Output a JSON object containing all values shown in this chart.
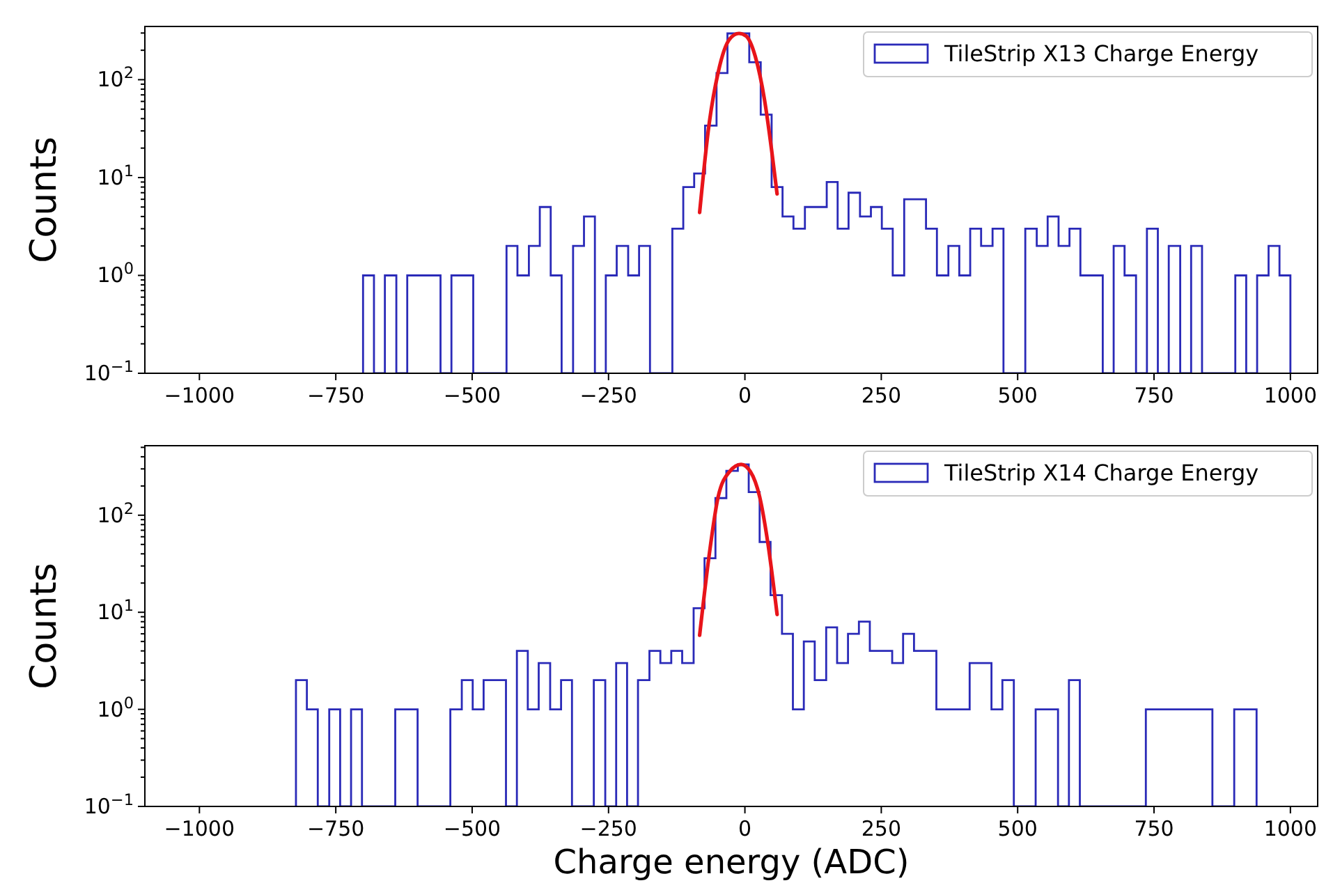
{
  "chart_data": [
    {
      "type": "histogram",
      "ylabel": "Counts",
      "log": true,
      "legend": "top right",
      "xlim": [
        -1100,
        1050
      ],
      "ylim": [
        0.1,
        350
      ],
      "xticks": [
        {
          "value": -1000,
          "label": "−1000"
        },
        {
          "value": -750,
          "label": "−750"
        },
        {
          "value": -500,
          "label": "−500"
        },
        {
          "value": -250,
          "label": "−250"
        },
        0,
        250,
        500,
        750,
        1000
      ],
      "yticks": [
        {
          "value": 0.1,
          "label": "10$^{−1}$"
        },
        {
          "value": 0.2,
          "label": null
        },
        {
          "value": 0.3,
          "label": null
        },
        {
          "value": 0.4,
          "label": null
        },
        {
          "value": 0.5,
          "label": null
        },
        {
          "value": 0.6,
          "label": null
        },
        {
          "value": 0.7,
          "label": null
        },
        {
          "value": 0.8,
          "label": null
        },
        {
          "value": 0.9,
          "label": null
        },
        {
          "value": 1,
          "label": "10$^{0}$"
        },
        {
          "value": 2,
          "label": null
        },
        {
          "value": 3,
          "label": null
        },
        {
          "value": 4,
          "label": null
        },
        {
          "value": 5,
          "label": null
        },
        {
          "value": 6,
          "label": null
        },
        {
          "value": 7,
          "label": null
        },
        {
          "value": 8,
          "label": null
        },
        {
          "value": 9,
          "label": null
        },
        {
          "value": 10,
          "label": "10$^{1}$"
        },
        {
          "value": 20,
          "label": null
        },
        {
          "value": 30,
          "label": null
        },
        {
          "value": 40,
          "label": null
        },
        {
          "value": 50,
          "label": null
        },
        {
          "value": 60,
          "label": null
        },
        {
          "value": 70,
          "label": null
        },
        {
          "value": 80,
          "label": null
        },
        {
          "value": 90,
          "label": null
        },
        {
          "value": 100,
          "label": "10$^{2}$"
        },
        {
          "value": 200,
          "label": null
        },
        {
          "value": 300,
          "label": null
        }
      ],
      "bins": [
        -700,
        -680,
        -660,
        -639,
        -619,
        -599,
        -579,
        -558,
        -538,
        -518,
        -498,
        -477,
        -457,
        -437,
        -417,
        -396,
        -376,
        -356,
        -336,
        -315,
        -295,
        -275,
        -255,
        -235,
        -214,
        -194,
        -174,
        -154,
        -133,
        -113,
        -93,
        -73,
        -52,
        -32,
        -12,
        8,
        29,
        49,
        69,
        89,
        110,
        130,
        150,
        170,
        190,
        211,
        231,
        251,
        271,
        292,
        312,
        332,
        352,
        373,
        393,
        413,
        433,
        454,
        474,
        494,
        514,
        535,
        555,
        575,
        595,
        615,
        636,
        656,
        676,
        696,
        717,
        737,
        757,
        777,
        798,
        818,
        838,
        858,
        879,
        899,
        919,
        939,
        960,
        980,
        1000
      ],
      "series": [
        {
          "name": "TileStrip X13 Charge Energy",
          "color": "#2a2ab8",
          "values": [
            1,
            null,
            1,
            null,
            1,
            1,
            1,
            null,
            1,
            1,
            null,
            null,
            null,
            2,
            1,
            2,
            5,
            1,
            null,
            2,
            4,
            null,
            1,
            2,
            1,
            2,
            null,
            null,
            3,
            8,
            11,
            34,
            117,
            297,
            297,
            151,
            44,
            8,
            4,
            3,
            5,
            5,
            9,
            3,
            7,
            4,
            5,
            3,
            1,
            6,
            6,
            3,
            1,
            2,
            1,
            3,
            2,
            3,
            null,
            null,
            3,
            2,
            4,
            2,
            3,
            1,
            1,
            null,
            2,
            1,
            null,
            3,
            null,
            2,
            null,
            2,
            null,
            null,
            null,
            1,
            null,
            1,
            2,
            1
          ]
        },
        {
          "type": "line",
          "color": "#e8141a",
          "x": [
            -83,
            -66,
            -49,
            -28,
            -11,
            2,
            19,
            36,
            49,
            59
          ],
          "values": [
            4.4,
            34,
            119,
            260,
            297,
            280,
            173,
            62,
            19,
            6.8
          ]
        }
      ]
    },
    {
      "type": "histogram",
      "ylabel": "Counts",
      "xlabel": "Charge energy (ADC)",
      "log": true,
      "legend": "top right",
      "xlim": [
        -1100,
        1050
      ],
      "ylim": [
        0.1,
        520
      ],
      "xticks": [
        {
          "value": -1000,
          "label": "−1000"
        },
        {
          "value": -750,
          "label": "−750"
        },
        {
          "value": -500,
          "label": "−500"
        },
        {
          "value": -250,
          "label": "−250"
        },
        0,
        250,
        500,
        750,
        1000
      ],
      "yticks": [
        {
          "value": 0.1,
          "label": "10$^{−1}$"
        },
        {
          "value": 0.2,
          "label": null
        },
        {
          "value": 0.3,
          "label": null
        },
        {
          "value": 0.4,
          "label": null
        },
        {
          "value": 0.5,
          "label": null
        },
        {
          "value": 0.6,
          "label": null
        },
        {
          "value": 0.7,
          "label": null
        },
        {
          "value": 0.8,
          "label": null
        },
        {
          "value": 0.9,
          "label": null
        },
        {
          "value": 1,
          "label": "10$^{0}$"
        },
        {
          "value": 2,
          "label": null
        },
        {
          "value": 3,
          "label": null
        },
        {
          "value": 4,
          "label": null
        },
        {
          "value": 5,
          "label": null
        },
        {
          "value": 6,
          "label": null
        },
        {
          "value": 7,
          "label": null
        },
        {
          "value": 8,
          "label": null
        },
        {
          "value": 9,
          "label": null
        },
        {
          "value": 10,
          "label": "10$^{1}$"
        },
        {
          "value": 20,
          "label": null
        },
        {
          "value": 30,
          "label": null
        },
        {
          "value": 40,
          "label": null
        },
        {
          "value": 50,
          "label": null
        },
        {
          "value": 60,
          "label": null
        },
        {
          "value": 70,
          "label": null
        },
        {
          "value": 80,
          "label": null
        },
        {
          "value": 90,
          "label": null
        },
        {
          "value": 100,
          "label": "10$^{2}$"
        },
        {
          "value": 200,
          "label": null
        },
        {
          "value": 300,
          "label": null
        },
        {
          "value": 400,
          "label": null
        },
        {
          "value": 500,
          "label": null
        }
      ],
      "bins": [
        -823,
        -803,
        -783,
        -762,
        -742,
        -722,
        -702,
        -681,
        -661,
        -641,
        -621,
        -600,
        -580,
        -560,
        -540,
        -519,
        -499,
        -479,
        -459,
        -438,
        -418,
        -398,
        -378,
        -357,
        -337,
        -317,
        -297,
        -277,
        -256,
        -236,
        -216,
        -196,
        -175,
        -155,
        -135,
        -115,
        -94,
        -74,
        -54,
        -34,
        -13,
        7,
        27,
        47,
        68,
        88,
        108,
        128,
        149,
        169,
        189,
        209,
        229,
        250,
        270,
        290,
        310,
        331,
        351,
        371,
        391,
        412,
        432,
        452,
        472,
        493,
        513,
        533,
        553,
        574,
        594,
        614,
        634,
        655,
        675,
        695,
        715,
        735,
        756,
        776,
        796,
        816,
        837,
        857,
        877,
        897,
        918,
        938
      ],
      "series": [
        {
          "name": "TileStrip X14 Charge Energy",
          "color": "#2a2ab8",
          "values": [
            2,
            1,
            null,
            1,
            null,
            1,
            null,
            null,
            null,
            1,
            1,
            null,
            null,
            null,
            1,
            2,
            1,
            2,
            2,
            null,
            4,
            1,
            3,
            1,
            2,
            null,
            null,
            2,
            null,
            3,
            null,
            2,
            4,
            3,
            4,
            3,
            11,
            36,
            150,
            286,
            334,
            173,
            53,
            15,
            6,
            1,
            5,
            2,
            7,
            3,
            6,
            8,
            4,
            4,
            3,
            6,
            4,
            4,
            1,
            1,
            1,
            3,
            3,
            1,
            2,
            null,
            null,
            1,
            1,
            null,
            2,
            null,
            null,
            null,
            null,
            null,
            null,
            1,
            1,
            1,
            1,
            1,
            1,
            null,
            null,
            1,
            1
          ]
        },
        {
          "type": "line",
          "color": "#e8141a",
          "x": [
            -83,
            -66,
            -49,
            -28,
            -7,
            10,
            27,
            42,
            59
          ],
          "values": [
            5.8,
            37,
            155,
            282,
            334,
            282,
            155,
            52,
            9.5
          ]
        }
      ]
    }
  ]
}
